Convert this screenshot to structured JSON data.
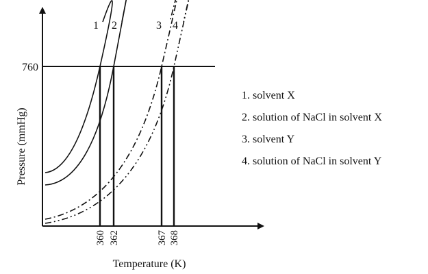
{
  "chart_data": {
    "type": "line",
    "xlabel": "Temperature (K)",
    "ylabel": "Pressure (mmHg)",
    "y_reference": 760,
    "x_ticks": [
      360,
      362,
      367,
      368
    ],
    "series": [
      {
        "name": "1",
        "label": "solvent X",
        "line_style": "solid",
        "boiling_point": 360
      },
      {
        "name": "2",
        "label": "solution of NaCl in solvent X",
        "line_style": "solid",
        "boiling_point": 362
      },
      {
        "name": "3",
        "label": "solvent Y",
        "line_style": "dash-dot",
        "boiling_point": 367
      },
      {
        "name": "4",
        "label": "solution of NaCl in solvent Y",
        "line_style": "dash-dot-dot",
        "boiling_point": 368
      }
    ]
  },
  "legend": [
    {
      "text": "1. solvent X"
    },
    {
      "text": "2. solution of NaCl in solvent X"
    },
    {
      "text": "3. solvent Y"
    },
    {
      "text": "4. solution of NaCl in solvent Y"
    }
  ]
}
